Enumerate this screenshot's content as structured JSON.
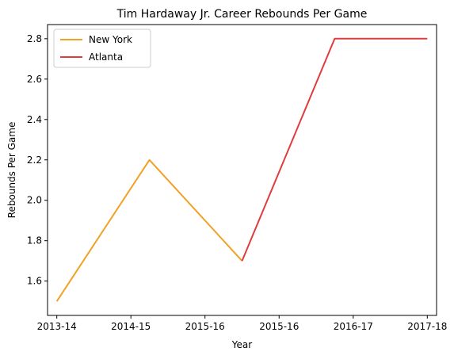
{
  "chart_data": {
    "type": "line",
    "title": "Tim Hardaway Jr. Career Rebounds Per Game",
    "xlabel": "Year",
    "ylabel": "Rebounds Per Game",
    "xlim": [
      -0.1,
      4.1
    ],
    "ylim": [
      1.43,
      2.87
    ],
    "x_ticks": [
      {
        "value": 0,
        "label": "2013-14"
      },
      {
        "value": 0.8,
        "label": "2014-15"
      },
      {
        "value": 1.6,
        "label": "2015-16"
      },
      {
        "value": 2.4,
        "label": "2015-16"
      },
      {
        "value": 3.2,
        "label": "2016-17"
      },
      {
        "value": 4.0,
        "label": "2017-18"
      }
    ],
    "y_ticks": [
      1.6,
      1.8,
      2.0,
      2.2,
      2.4,
      2.6,
      2.8
    ],
    "grid": false,
    "legend_position": "top-left",
    "series": [
      {
        "name": "New York",
        "color": "#f0a126",
        "points": [
          [
            0,
            1.5
          ],
          [
            1.0,
            2.2
          ],
          [
            2.0,
            1.7
          ]
        ]
      },
      {
        "name": "Atlanta",
        "color": "#e03c3c",
        "points": [
          [
            2.0,
            1.7
          ],
          [
            3.0,
            2.8
          ],
          [
            4.0,
            2.8
          ]
        ]
      }
    ]
  }
}
